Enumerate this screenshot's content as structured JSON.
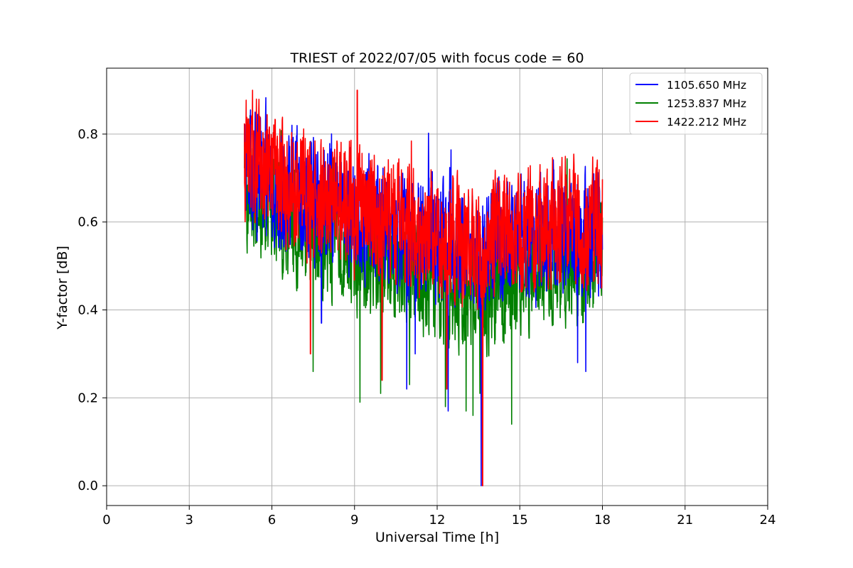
{
  "chart_data": {
    "type": "line",
    "title": "TRIEST of 2022/07/05 with focus code = 60",
    "xlabel": "Universal Time [h]",
    "ylabel": "Y-factor [dB]",
    "xlim": [
      0,
      24
    ],
    "ylim": [
      -0.045,
      0.95
    ],
    "xticks": [
      0,
      3,
      6,
      9,
      12,
      15,
      18,
      21,
      24
    ],
    "yticks": [
      0.0,
      0.2,
      0.4,
      0.6,
      0.8
    ],
    "ytick_labels": [
      "0.0",
      "0.2",
      "0.4",
      "0.6",
      "0.8"
    ],
    "grid": true,
    "legend_position": "top-right",
    "series": [
      {
        "name": "1105.650 MHz",
        "color": "#0000ff",
        "x": [
          5.0,
          5.25,
          5.5,
          5.75,
          6.0,
          6.25,
          6.5,
          6.75,
          7.0,
          7.25,
          7.5,
          7.75,
          8.0,
          8.25,
          8.5,
          8.75,
          9.0,
          9.25,
          9.5,
          9.75,
          10.0,
          10.25,
          10.5,
          10.75,
          11.0,
          11.25,
          11.5,
          11.75,
          12.0,
          12.25,
          12.5,
          12.75,
          13.0,
          13.25,
          13.5,
          13.75,
          14.0,
          14.25,
          14.5,
          14.75,
          15.0,
          15.25,
          15.5,
          15.75,
          16.0,
          16.25,
          16.5,
          16.75,
          17.0,
          17.25,
          17.5,
          17.75,
          18.0
        ],
        "y": [
          0.72,
          0.74,
          0.71,
          0.7,
          0.69,
          0.68,
          0.68,
          0.67,
          0.66,
          0.66,
          0.64,
          0.64,
          0.63,
          0.63,
          0.64,
          0.62,
          0.61,
          0.62,
          0.61,
          0.6,
          0.6,
          0.6,
          0.59,
          0.58,
          0.57,
          0.57,
          0.56,
          0.57,
          0.56,
          0.55,
          0.55,
          0.54,
          0.53,
          0.53,
          0.52,
          0.5,
          0.54,
          0.55,
          0.55,
          0.56,
          0.56,
          0.56,
          0.57,
          0.57,
          0.58,
          0.58,
          0.58,
          0.58,
          0.57,
          0.57,
          0.57,
          0.58,
          0.58
        ],
        "amp": 0.12,
        "spikes": [
          {
            "x": 7.8,
            "y": 0.37
          },
          {
            "x": 10.9,
            "y": 0.22
          },
          {
            "x": 11.2,
            "y": 0.3
          },
          {
            "x": 12.4,
            "y": 0.17
          },
          {
            "x": 13.6,
            "y": 0.0
          },
          {
            "x": 17.4,
            "y": 0.26
          },
          {
            "x": 17.1,
            "y": 0.28
          }
        ]
      },
      {
        "name": "1253.837 MHz",
        "color": "#008000",
        "x": [
          5.0,
          5.25,
          5.5,
          5.75,
          6.0,
          6.25,
          6.5,
          6.75,
          7.0,
          7.25,
          7.5,
          7.75,
          8.0,
          8.25,
          8.5,
          8.75,
          9.0,
          9.25,
          9.5,
          9.75,
          10.0,
          10.25,
          10.5,
          10.75,
          11.0,
          11.25,
          11.5,
          11.75,
          12.0,
          12.25,
          12.5,
          12.75,
          13.0,
          13.25,
          13.5,
          13.75,
          14.0,
          14.25,
          14.5,
          14.75,
          15.0,
          15.25,
          15.5,
          15.75,
          16.0,
          16.25,
          16.5,
          16.75,
          17.0,
          17.25,
          17.5,
          17.75,
          18.0
        ],
        "y": [
          0.66,
          0.68,
          0.65,
          0.64,
          0.62,
          0.61,
          0.6,
          0.59,
          0.58,
          0.57,
          0.56,
          0.55,
          0.54,
          0.54,
          0.55,
          0.53,
          0.52,
          0.53,
          0.51,
          0.51,
          0.5,
          0.51,
          0.5,
          0.49,
          0.48,
          0.48,
          0.47,
          0.48,
          0.47,
          0.46,
          0.46,
          0.45,
          0.44,
          0.44,
          0.43,
          0.42,
          0.45,
          0.46,
          0.47,
          0.47,
          0.48,
          0.48,
          0.49,
          0.49,
          0.49,
          0.5,
          0.5,
          0.5,
          0.49,
          0.49,
          0.49,
          0.5,
          0.51
        ],
        "amp": 0.11,
        "spikes": [
          {
            "x": 7.5,
            "y": 0.26
          },
          {
            "x": 9.2,
            "y": 0.19
          },
          {
            "x": 9.95,
            "y": 0.21
          },
          {
            "x": 11.0,
            "y": 0.23
          },
          {
            "x": 12.3,
            "y": 0.18
          },
          {
            "x": 13.05,
            "y": 0.17
          },
          {
            "x": 13.3,
            "y": 0.16
          },
          {
            "x": 13.55,
            "y": 0.21
          },
          {
            "x": 14.7,
            "y": 0.14
          }
        ]
      },
      {
        "name": "1422.212 MHz",
        "color": "#ff0000",
        "x": [
          5.0,
          5.25,
          5.5,
          5.75,
          6.0,
          6.25,
          6.5,
          6.75,
          7.0,
          7.25,
          7.5,
          7.75,
          8.0,
          8.25,
          8.5,
          8.75,
          9.0,
          9.25,
          9.5,
          9.75,
          10.0,
          10.25,
          10.5,
          10.75,
          11.0,
          11.25,
          11.5,
          11.75,
          12.0,
          12.25,
          12.5,
          12.75,
          13.0,
          13.25,
          13.5,
          13.75,
          14.0,
          14.25,
          14.5,
          14.75,
          15.0,
          15.25,
          15.5,
          15.75,
          16.0,
          16.25,
          16.5,
          16.75,
          17.0,
          17.25,
          17.5,
          17.75,
          18.0
        ],
        "y": [
          0.74,
          0.76,
          0.73,
          0.72,
          0.71,
          0.7,
          0.69,
          0.68,
          0.67,
          0.67,
          0.66,
          0.66,
          0.65,
          0.65,
          0.66,
          0.64,
          0.63,
          0.64,
          0.63,
          0.62,
          0.62,
          0.62,
          0.61,
          0.6,
          0.59,
          0.59,
          0.58,
          0.59,
          0.58,
          0.57,
          0.57,
          0.56,
          0.55,
          0.55,
          0.54,
          0.52,
          0.56,
          0.57,
          0.57,
          0.58,
          0.58,
          0.58,
          0.59,
          0.59,
          0.6,
          0.6,
          0.6,
          0.6,
          0.59,
          0.59,
          0.59,
          0.6,
          0.6
        ],
        "amp": 0.12,
        "spikes": [
          {
            "x": 5.3,
            "y": 0.9
          },
          {
            "x": 9.1,
            "y": 0.9
          },
          {
            "x": 7.4,
            "y": 0.3
          },
          {
            "x": 10.0,
            "y": 0.24
          },
          {
            "x": 13.65,
            "y": 0.0
          },
          {
            "x": 12.35,
            "y": 0.22
          }
        ]
      }
    ]
  }
}
